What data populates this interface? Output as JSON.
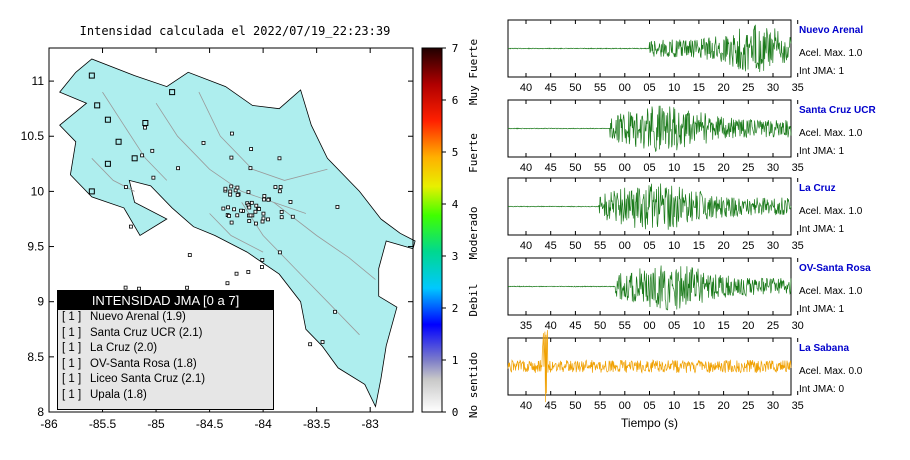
{
  "map": {
    "title": "Intensidad calculada el 2022/07/19_22:23:39",
    "x_ticks": [
      "-86",
      "-85.5",
      "-85",
      "-84.5",
      "-84",
      "-83.5",
      "-83"
    ],
    "y_ticks": [
      "11",
      "10.5",
      "10",
      "9.5",
      "9",
      "8.5",
      "8"
    ],
    "x_range": [
      -86,
      -82.6
    ],
    "y_range": [
      8,
      11.3
    ],
    "land_color": "#aeeeee",
    "legend": {
      "header": "INTENSIDAD JMA [0 a 7]",
      "items": [
        {
          "level": "[ 1 ]",
          "label": "Nuevo Arenal (1.9)"
        },
        {
          "level": "[ 1 ]",
          "label": "Santa Cruz UCR (2.1)"
        },
        {
          "level": "[ 1 ]",
          "label": "La Cruz (2.0)"
        },
        {
          "level": "[ 1 ]",
          "label": "OV-Santa Rosa (1.8)"
        },
        {
          "level": "[ 1 ]",
          "label": "Liceo Santa Cruz (2.1)"
        },
        {
          "level": "[ 1 ]",
          "label": "Upala (1.8)"
        }
      ]
    }
  },
  "colorbar": {
    "ticks": [
      "0",
      "1",
      "2",
      "3",
      "4",
      "5",
      "6",
      "7"
    ],
    "labels": [
      "No sentido",
      "Debil",
      "Moderado",
      "Fuerte",
      "Muy Fuerte"
    ]
  },
  "waveforms": {
    "xlabel": "Tiempo (s)",
    "accel_label": "Acel. Max.",
    "jma_label": "Int JMA:",
    "stations": [
      {
        "name": "Nuevo Arenal",
        "accel": "1.0",
        "jma": "1",
        "color": "#1a7a1a",
        "ticks": [
          "40",
          "45",
          "50",
          "55",
          "00",
          "05",
          "10",
          "15",
          "20",
          "25",
          "30",
          "35"
        ],
        "onset": 0.5
      },
      {
        "name": "Santa Cruz UCR",
        "accel": "1.0",
        "jma": "1",
        "color": "#1a7a1a",
        "ticks": [
          "40",
          "45",
          "50",
          "55",
          "00",
          "05",
          "10",
          "15",
          "20",
          "25",
          "30",
          "35"
        ],
        "onset": 0.36
      },
      {
        "name": "La Cruz",
        "accel": "1.0",
        "jma": "1",
        "color": "#1a7a1a",
        "ticks": [
          "40",
          "45",
          "50",
          "55",
          "00",
          "05",
          "10",
          "15",
          "20",
          "25",
          "30",
          "35"
        ],
        "onset": 0.32
      },
      {
        "name": "OV-Santa Rosa",
        "accel": "1.0",
        "jma": "1",
        "color": "#1a7a1a",
        "ticks": [
          "35",
          "40",
          "45",
          "50",
          "55",
          "00",
          "05",
          "10",
          "15",
          "20",
          "25",
          "30"
        ],
        "onset": 0.38
      },
      {
        "name": "La Sabana",
        "accel": "0.0",
        "jma": "0",
        "color": "#f0a000",
        "ticks": [
          "40",
          "45",
          "50",
          "55",
          "00",
          "05",
          "10",
          "15",
          "20",
          "25",
          "30",
          "35"
        ],
        "onset": 0.0
      }
    ]
  }
}
